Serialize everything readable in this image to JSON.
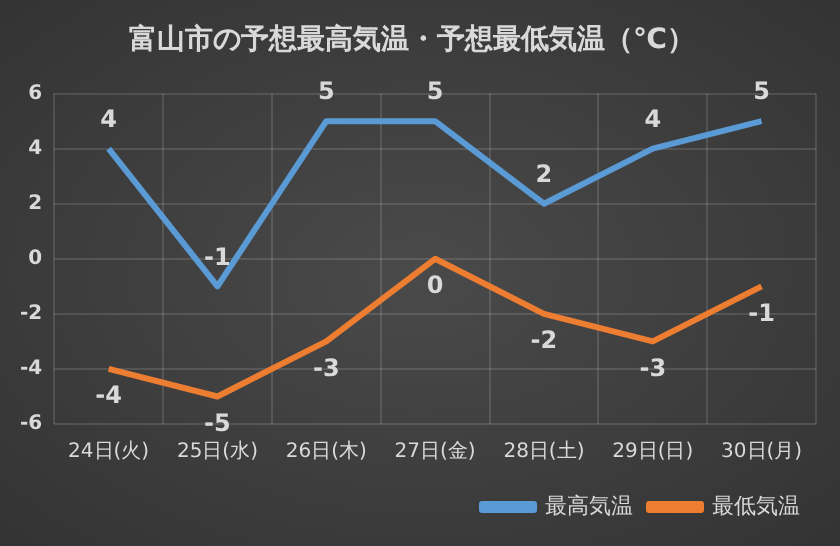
{
  "chart_data": {
    "type": "line",
    "title": "富山市の予想最高気温・予想最低気温（℃）",
    "categories": [
      "24日(火)",
      "25日(水)",
      "26日(木)",
      "27日(金)",
      "28日(土)",
      "29日(日)",
      "30日(月)"
    ],
    "series": [
      {
        "name": "最高気温",
        "color": "#5b9bd5",
        "values": [
          4,
          -1,
          5,
          5,
          2,
          4,
          5
        ]
      },
      {
        "name": "最低気温",
        "color": "#ed7d31",
        "values": [
          -4,
          -5,
          -3,
          0,
          -2,
          -3,
          -1
        ]
      }
    ],
    "ylim": [
      -6,
      6
    ],
    "yticks": [
      -6,
      -4,
      -2,
      0,
      2,
      4,
      6
    ],
    "grid": true,
    "legend": "bottom right",
    "data_labels": true
  }
}
